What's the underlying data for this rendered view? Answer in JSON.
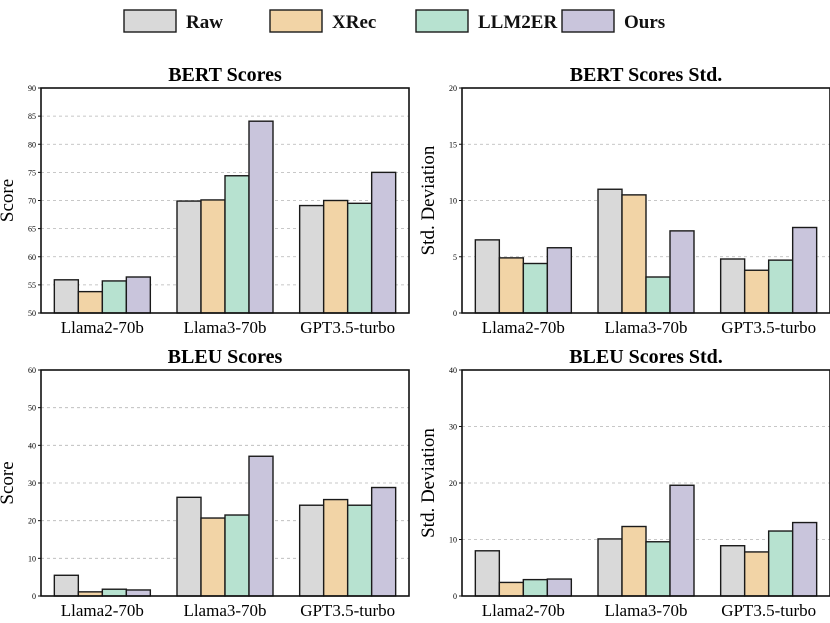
{
  "legend": {
    "items": [
      {
        "name": "Raw",
        "color": "#d9d9d9"
      },
      {
        "name": "XRec",
        "color": "#f2d4a6"
      },
      {
        "name": "LLM2ER",
        "color": "#b7e2d0"
      },
      {
        "name": "Ours",
        "color": "#c9c5dc"
      }
    ]
  },
  "chart_data": [
    {
      "type": "bar",
      "title": "BERT Scores",
      "ylabel": "Score",
      "categories": [
        "Llama2-70b",
        "Llama3-70b",
        "GPT3.5-turbo"
      ],
      "ylim": [
        50,
        90
      ],
      "yticks": [
        50,
        55,
        60,
        65,
        70,
        75,
        80,
        85,
        90
      ],
      "grid": true,
      "series": [
        {
          "name": "Raw",
          "values": [
            55.9,
            69.9,
            69.1
          ]
        },
        {
          "name": "XRec",
          "values": [
            53.8,
            70.1,
            70.0
          ]
        },
        {
          "name": "LLM2ER",
          "values": [
            55.7,
            74.4,
            69.5
          ]
        },
        {
          "name": "Ours",
          "values": [
            56.4,
            84.1,
            75.0
          ]
        }
      ]
    },
    {
      "type": "bar",
      "title": "BERT Scores Std.",
      "ylabel": "Std. Deviation",
      "categories": [
        "Llama2-70b",
        "Llama3-70b",
        "GPT3.5-turbo"
      ],
      "ylim": [
        0,
        20
      ],
      "yticks": [
        0,
        5,
        10,
        15,
        20
      ],
      "grid": true,
      "series": [
        {
          "name": "Raw",
          "values": [
            6.5,
            11.0,
            4.8
          ]
        },
        {
          "name": "XRec",
          "values": [
            4.9,
            10.5,
            3.8
          ]
        },
        {
          "name": "LLM2ER",
          "values": [
            4.4,
            3.2,
            4.7
          ]
        },
        {
          "name": "Ours",
          "values": [
            5.8,
            7.3,
            7.6
          ]
        }
      ]
    },
    {
      "type": "bar",
      "title": "BLEU Scores",
      "ylabel": "Score",
      "categories": [
        "Llama2-70b",
        "Llama3-70b",
        "GPT3.5-turbo"
      ],
      "ylim": [
        0,
        60
      ],
      "yticks": [
        0,
        10,
        20,
        30,
        40,
        50,
        60
      ],
      "grid": true,
      "series": [
        {
          "name": "Raw",
          "values": [
            5.5,
            26.2,
            24.1
          ]
        },
        {
          "name": "XRec",
          "values": [
            1.1,
            20.7,
            25.6
          ]
        },
        {
          "name": "LLM2ER",
          "values": [
            1.8,
            21.5,
            24.1
          ]
        },
        {
          "name": "Ours",
          "values": [
            1.6,
            37.1,
            28.8
          ]
        }
      ]
    },
    {
      "type": "bar",
      "title": "BLEU Scores Std.",
      "ylabel": "Std. Deviation",
      "categories": [
        "Llama2-70b",
        "Llama3-70b",
        "GPT3.5-turbo"
      ],
      "ylim": [
        0,
        40
      ],
      "yticks": [
        0,
        10,
        20,
        30,
        40
      ],
      "grid": true,
      "series": [
        {
          "name": "Raw",
          "values": [
            8.0,
            10.1,
            8.9
          ]
        },
        {
          "name": "XRec",
          "values": [
            2.4,
            12.3,
            7.8
          ]
        },
        {
          "name": "LLM2ER",
          "values": [
            2.9,
            9.6,
            11.5
          ]
        },
        {
          "name": "Ours",
          "values": [
            3.0,
            19.6,
            13.0
          ]
        }
      ]
    }
  ]
}
